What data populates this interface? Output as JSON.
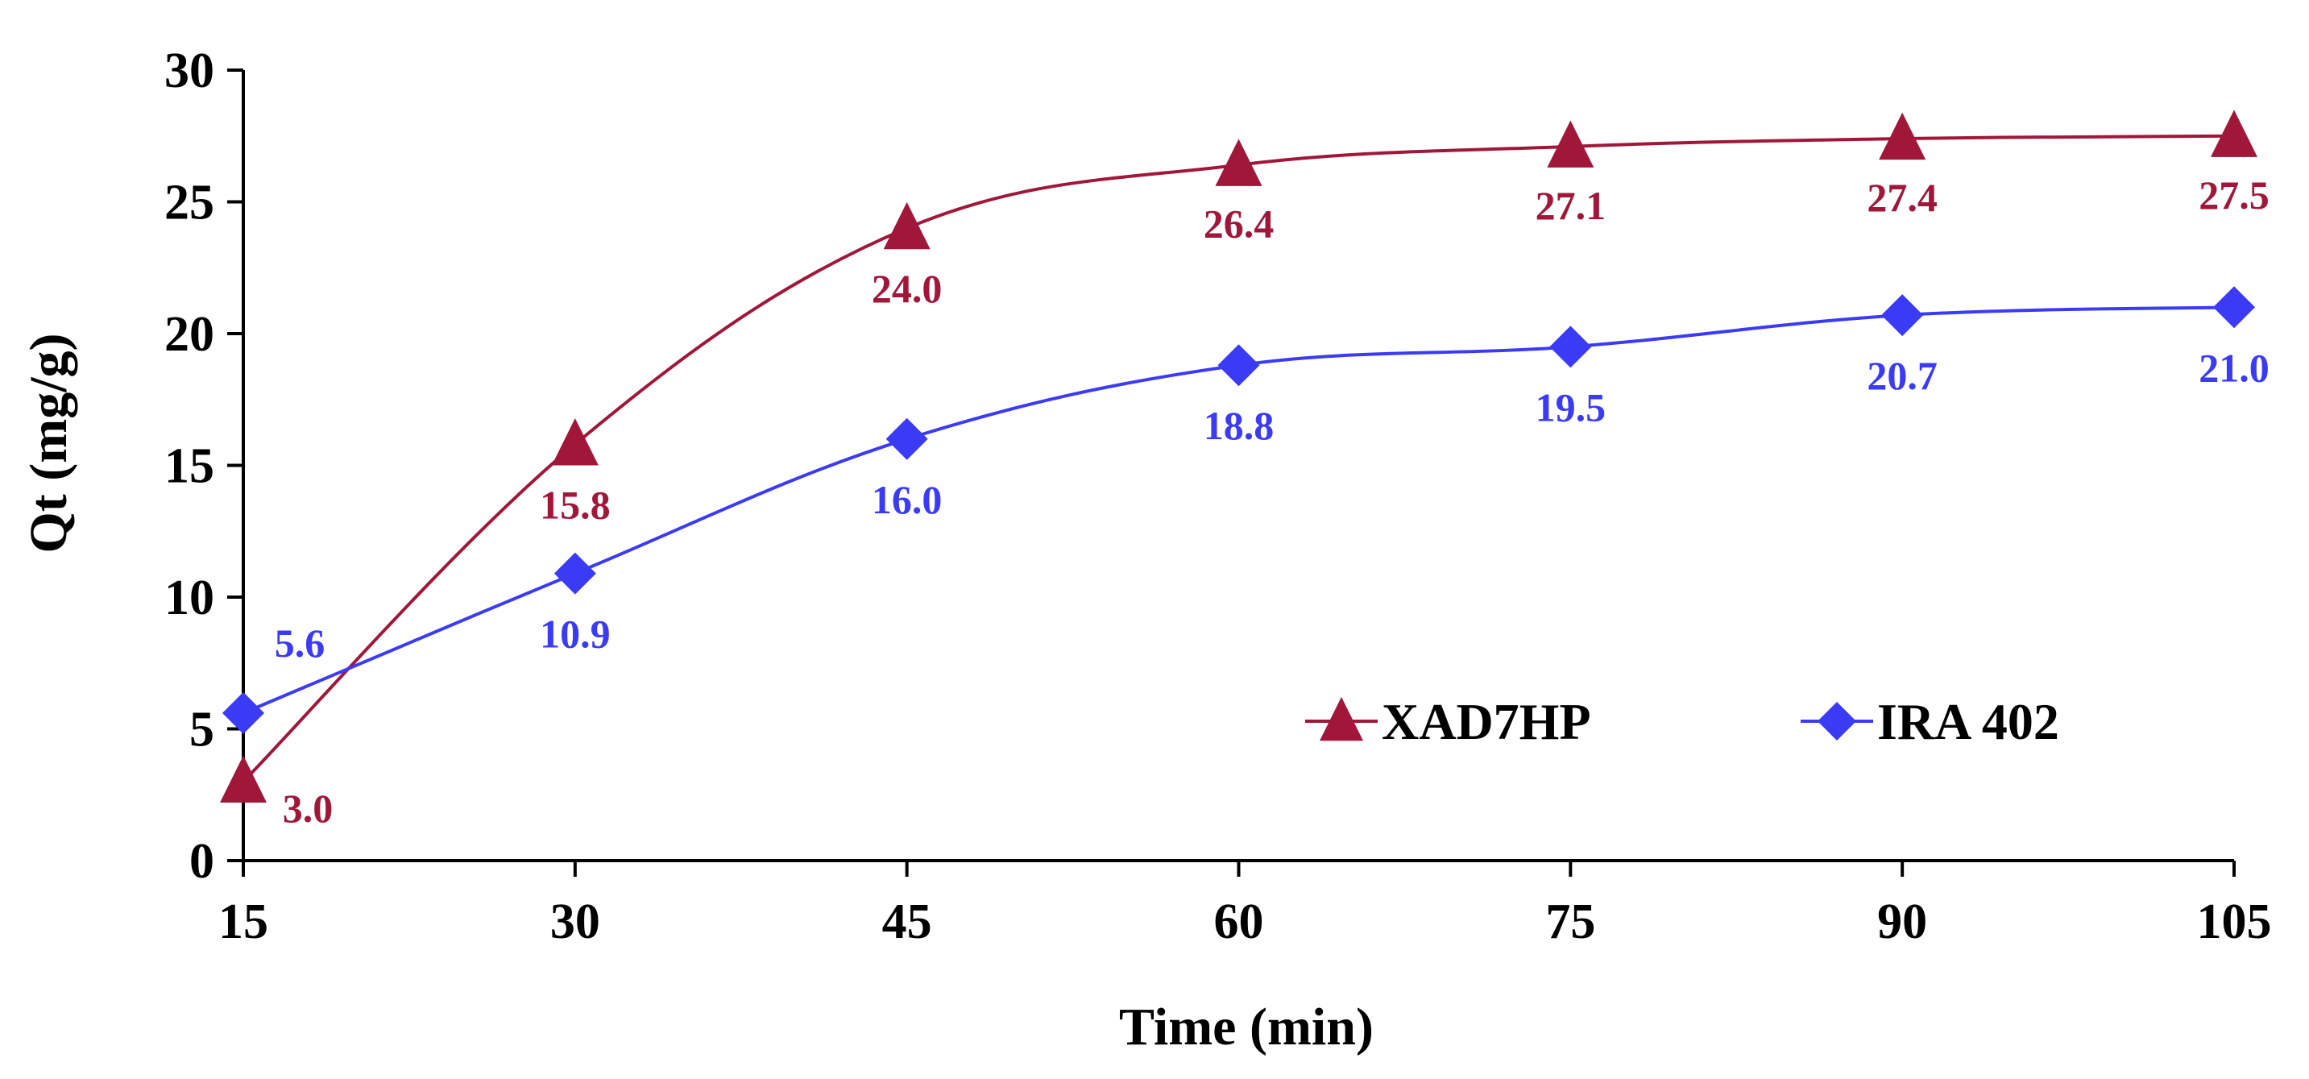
{
  "chart_data": {
    "type": "line",
    "xlabel": "Time (min)",
    "ylabel": "Qt (mg/g)",
    "x": [
      15,
      30,
      45,
      60,
      75,
      90,
      105
    ],
    "x_tick_labels": [
      "15",
      "30",
      "45",
      "60",
      "75",
      "90",
      "105"
    ],
    "y_tick_labels": [
      "0",
      "5",
      "10",
      "15",
      "20",
      "25",
      "30"
    ],
    "xlim": [
      15,
      105
    ],
    "ylim": [
      0,
      30
    ],
    "grid": false,
    "legend_position": "lower-right",
    "series": [
      {
        "name": "XAD7HP",
        "marker": "triangle",
        "color": "#A0173A",
        "values": [
          3.0,
          15.8,
          24.0,
          26.4,
          27.1,
          27.4,
          27.5
        ],
        "data_labels": [
          "3.0",
          "15.8",
          "24.0",
          "26.4",
          "27.1",
          "27.4",
          "27.5"
        ]
      },
      {
        "name": "IRA 402",
        "marker": "diamond",
        "color": "#3B3BF5",
        "values": [
          5.6,
          10.9,
          16.0,
          18.8,
          19.5,
          20.7,
          21.0
        ],
        "data_labels": [
          "5.6",
          "10.9",
          "16.0",
          "18.8",
          "19.5",
          "20.7",
          "21.0"
        ]
      }
    ]
  }
}
